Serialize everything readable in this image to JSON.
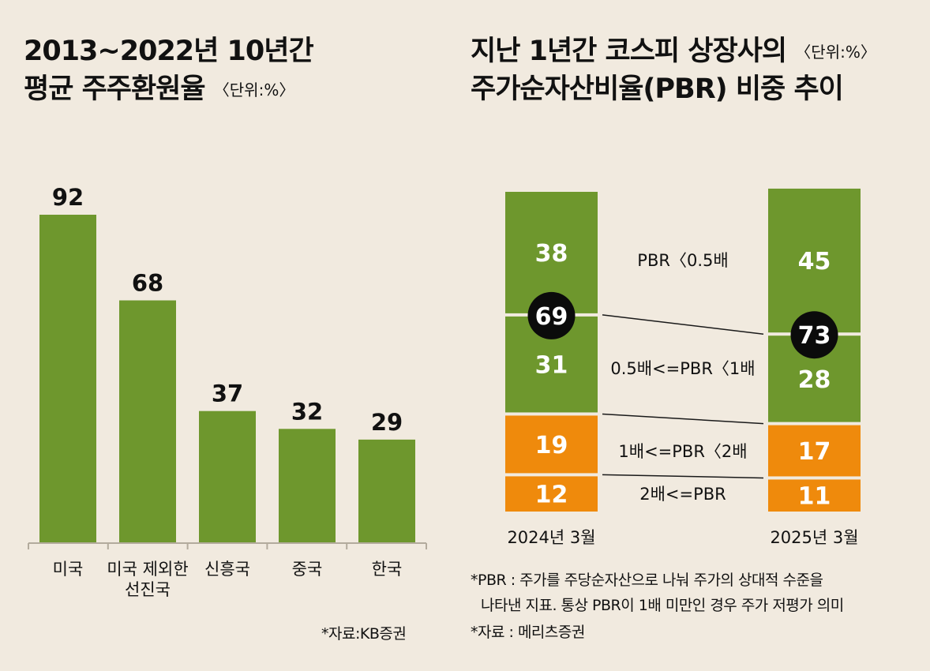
{
  "colors": {
    "background": "#f1eadf",
    "green": "#6e972d",
    "orange": "#ef8a0c",
    "bubble": "#0b0b0b",
    "line": "#1a1a1a",
    "axis": "#b3ab9d"
  },
  "left": {
    "title_line1": "2013~2022년 10년간",
    "title_line2": "평균 주주환원율",
    "unit": "〈단위:%〉",
    "source": "*자료:KB증권"
  },
  "right": {
    "title_line1": "지난 1년간 코스피 상장사의",
    "unit": "〈단위:%〉",
    "title_line2": "주가순자산비율(PBR) 비중 추이",
    "note_line1": "*PBR : 주가를 주당순자산으로 나눠 주가의 상대적 수준을",
    "note_line2": "나타낸 지표. 통상 PBR이 1배 미만인 경우 주가 저평가 의미",
    "source": "*자료 : 메리츠증권"
  },
  "chart_data": [
    {
      "type": "bar",
      "title": "2013~2022년 10년간 평균 주주환원율",
      "unit": "%",
      "categories": [
        "미국",
        "미국 제외한 선진국",
        "신흥국",
        "중국",
        "한국"
      ],
      "category_lines": [
        [
          "미국"
        ],
        [
          "미국 제외한",
          "선진국"
        ],
        [
          "신흥국"
        ],
        [
          "중국"
        ],
        [
          "한국"
        ]
      ],
      "values": [
        92,
        68,
        37,
        32,
        29
      ],
      "ylim": [
        0,
        92
      ],
      "xlabel": "",
      "ylabel": ""
    },
    {
      "type": "stacked_bar",
      "title": "지난 1년간 코스피 상장사의 주가순자산비율(PBR) 비중 추이",
      "unit": "%",
      "categories": [
        "2024년 3월",
        "2025년 3월"
      ],
      "series": [
        {
          "name": "2배<=PBR",
          "values": [
            12,
            11
          ],
          "color": "orange"
        },
        {
          "name": "1배<=PBR<2배",
          "values": [
            19,
            17
          ],
          "color": "orange"
        },
        {
          "name": "0.5배<=PBR<1배",
          "values": [
            31,
            28
          ],
          "color": "green"
        },
        {
          "name": "PBR<0.5배",
          "values": [
            38,
            45
          ],
          "color": "green"
        }
      ],
      "segment_labels": [
        "2배<=PBR",
        "1배<=PBR〈2배",
        "0.5배<=PBR〈1배",
        "PBR〈0.5배"
      ],
      "below_1x_totals": [
        69,
        73
      ]
    }
  ]
}
